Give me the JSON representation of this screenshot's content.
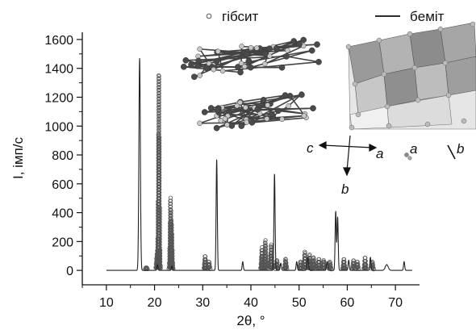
{
  "chart_data": {
    "type": "line",
    "xlabel": "2θ, °",
    "ylabel": "I, імп/с",
    "xlim": [
      5,
      75
    ],
    "ylim": [
      -100,
      1650
    ],
    "x_ticks": [
      10,
      20,
      30,
      40,
      50,
      60,
      70
    ],
    "y_ticks": [
      0,
      200,
      400,
      600,
      800,
      1000,
      1200,
      1400,
      1600
    ],
    "legend_position": "top",
    "series": [
      {
        "name": "бeміт",
        "style": "line",
        "color": "#222222",
        "peaks": [
          {
            "x": 16.9,
            "y": 1470,
            "w": 0.15
          },
          {
            "x": 20.6,
            "y": 40,
            "w": 0.12
          },
          {
            "x": 23.6,
            "y": 30,
            "w": 0.12
          },
          {
            "x": 32.9,
            "y": 770,
            "w": 0.12
          },
          {
            "x": 38.3,
            "y": 60,
            "w": 0.12
          },
          {
            "x": 44.9,
            "y": 670,
            "w": 0.12
          },
          {
            "x": 46.2,
            "y": 50,
            "w": 0.12
          },
          {
            "x": 49.5,
            "y": 60,
            "w": 0.12
          },
          {
            "x": 51.8,
            "y": 90,
            "w": 0.15
          },
          {
            "x": 55.8,
            "y": 60,
            "w": 0.12
          },
          {
            "x": 57.6,
            "y": 410,
            "w": 0.12
          },
          {
            "x": 58.0,
            "y": 370,
            "w": 0.12
          },
          {
            "x": 60.3,
            "y": 70,
            "w": 0.12
          },
          {
            "x": 64.8,
            "y": 90,
            "w": 0.12
          },
          {
            "x": 68.2,
            "y": 40,
            "w": 0.3
          },
          {
            "x": 71.8,
            "y": 60,
            "w": 0.12
          }
        ]
      },
      {
        "name": "гібсит",
        "style": "circles",
        "color": "#555555",
        "peaks": [
          {
            "x": 18.3,
            "y": 20,
            "w": 0.2
          },
          {
            "x": 20.5,
            "y": 110,
            "w": 0.15
          },
          {
            "x": 20.9,
            "y": 1410,
            "w": 0.13
          },
          {
            "x": 23.3,
            "y": 500,
            "w": 0.13
          },
          {
            "x": 23.6,
            "y": 270,
            "w": 0.12
          },
          {
            "x": 30.5,
            "y": 100,
            "w": 0.15
          },
          {
            "x": 31.3,
            "y": 60,
            "w": 0.15
          },
          {
            "x": 42.3,
            "y": 160,
            "w": 0.15
          },
          {
            "x": 43.0,
            "y": 210,
            "w": 0.15
          },
          {
            "x": 44.2,
            "y": 180,
            "w": 0.15
          },
          {
            "x": 45.4,
            "y": 70,
            "w": 0.15
          },
          {
            "x": 47.2,
            "y": 80,
            "w": 0.15
          },
          {
            "x": 50.3,
            "y": 60,
            "w": 0.15
          },
          {
            "x": 51.2,
            "y": 130,
            "w": 0.15
          },
          {
            "x": 52.2,
            "y": 110,
            "w": 0.15
          },
          {
            "x": 53.0,
            "y": 90,
            "w": 0.15
          },
          {
            "x": 54.1,
            "y": 80,
            "w": 0.15
          },
          {
            "x": 55.1,
            "y": 70,
            "w": 0.15
          },
          {
            "x": 56.4,
            "y": 60,
            "w": 0.15
          },
          {
            "x": 59.3,
            "y": 80,
            "w": 0.15
          },
          {
            "x": 61.3,
            "y": 70,
            "w": 0.15
          },
          {
            "x": 62.1,
            "y": 60,
            "w": 0.15
          },
          {
            "x": 63.7,
            "y": 90,
            "w": 0.15
          },
          {
            "x": 65.2,
            "y": 60,
            "w": 0.15
          }
        ]
      }
    ],
    "annotations": {
      "gibbsite_axes": [
        "c",
        "a",
        "b"
      ],
      "boehmite_axes": [
        "a",
        "b"
      ]
    }
  }
}
